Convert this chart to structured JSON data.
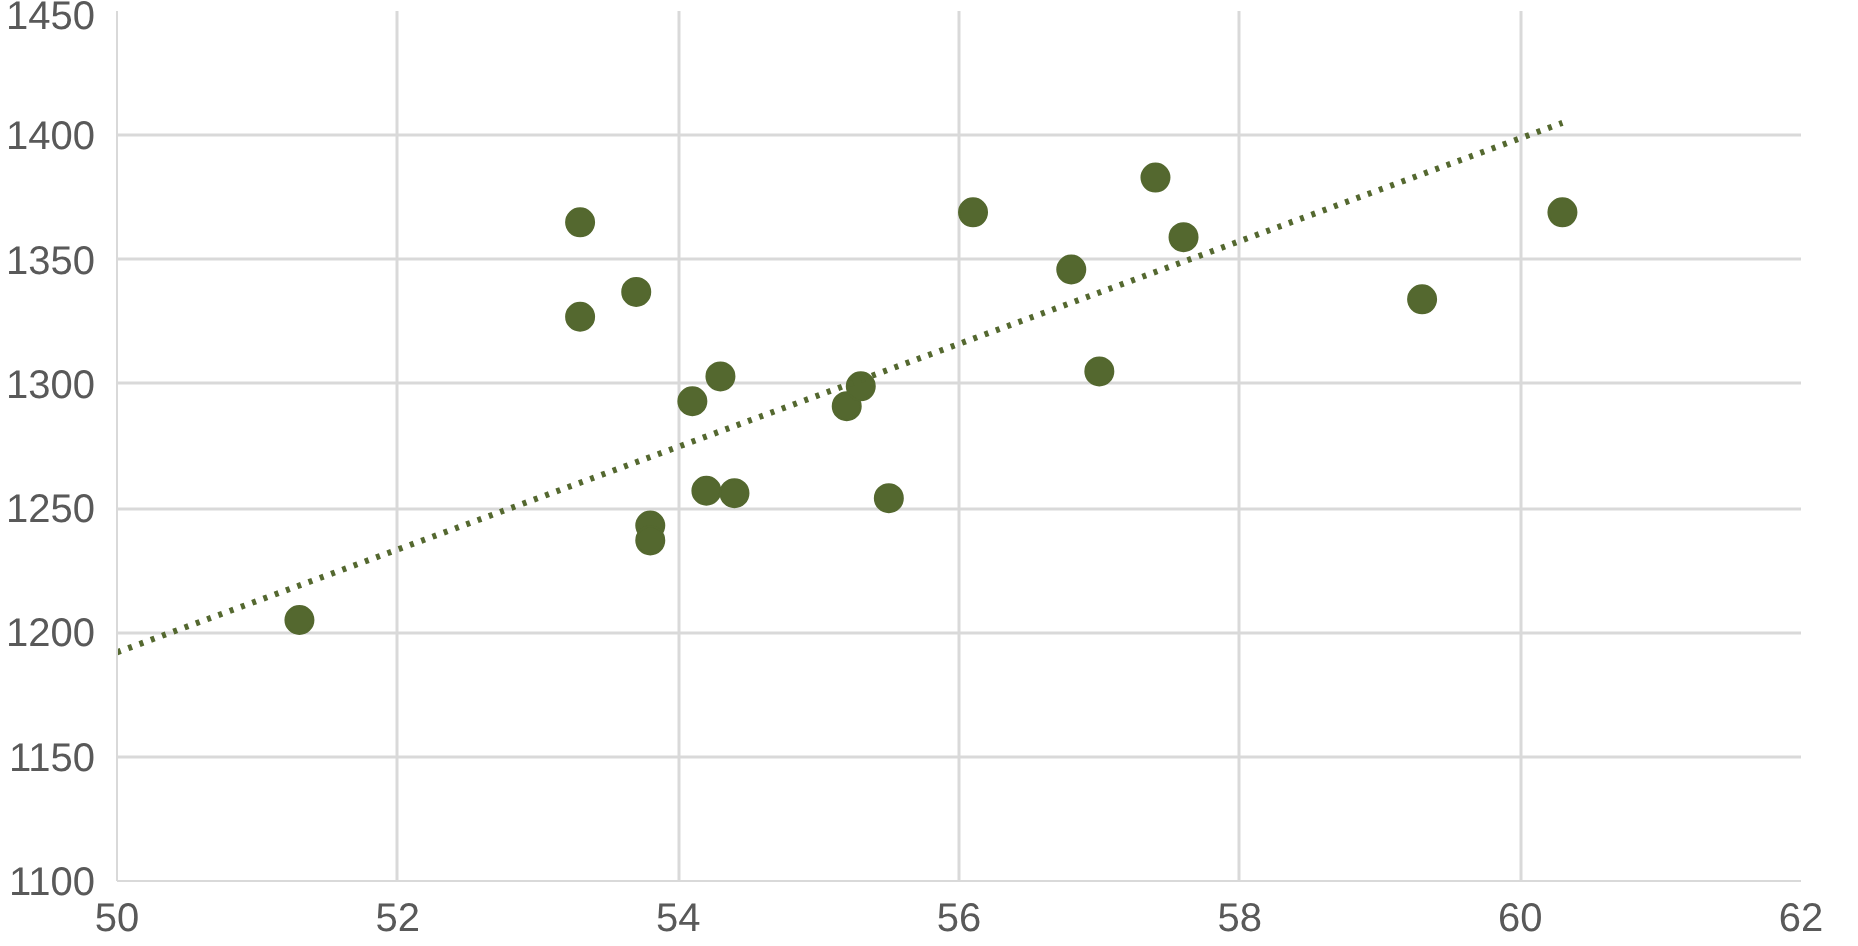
{
  "chart_data": {
    "type": "scatter",
    "xlim": [
      50,
      62
    ],
    "ylim": [
      1100,
      1450
    ],
    "xticks": [
      50,
      52,
      54,
      56,
      58,
      60,
      62
    ],
    "yticks": [
      1100,
      1150,
      1200,
      1250,
      1300,
      1350,
      1400,
      1450
    ],
    "grid": true,
    "series": [
      {
        "marker": "circle",
        "color": "#54682f",
        "x": [
          51.3,
          53.3,
          53.3,
          53.7,
          53.8,
          53.8,
          54.1,
          54.3,
          54.2,
          54.4,
          55.2,
          55.3,
          55.5,
          56.1,
          56.8,
          57.0,
          57.4,
          57.6,
          59.3,
          60.3
        ],
        "values": [
          1205,
          1365,
          1327,
          1337,
          1243,
          1237,
          1293,
          1303,
          1257,
          1256,
          1291,
          1299,
          1254,
          1369,
          1346,
          1305,
          1383,
          1359,
          1334,
          1369
        ]
      },
      {
        "type": "line",
        "color": "#54682f",
        "line_style": "dotted",
        "marker": "none",
        "x": [
          50,
          60.3
        ],
        "values": [
          1192,
          1405
        ]
      }
    ]
  }
}
